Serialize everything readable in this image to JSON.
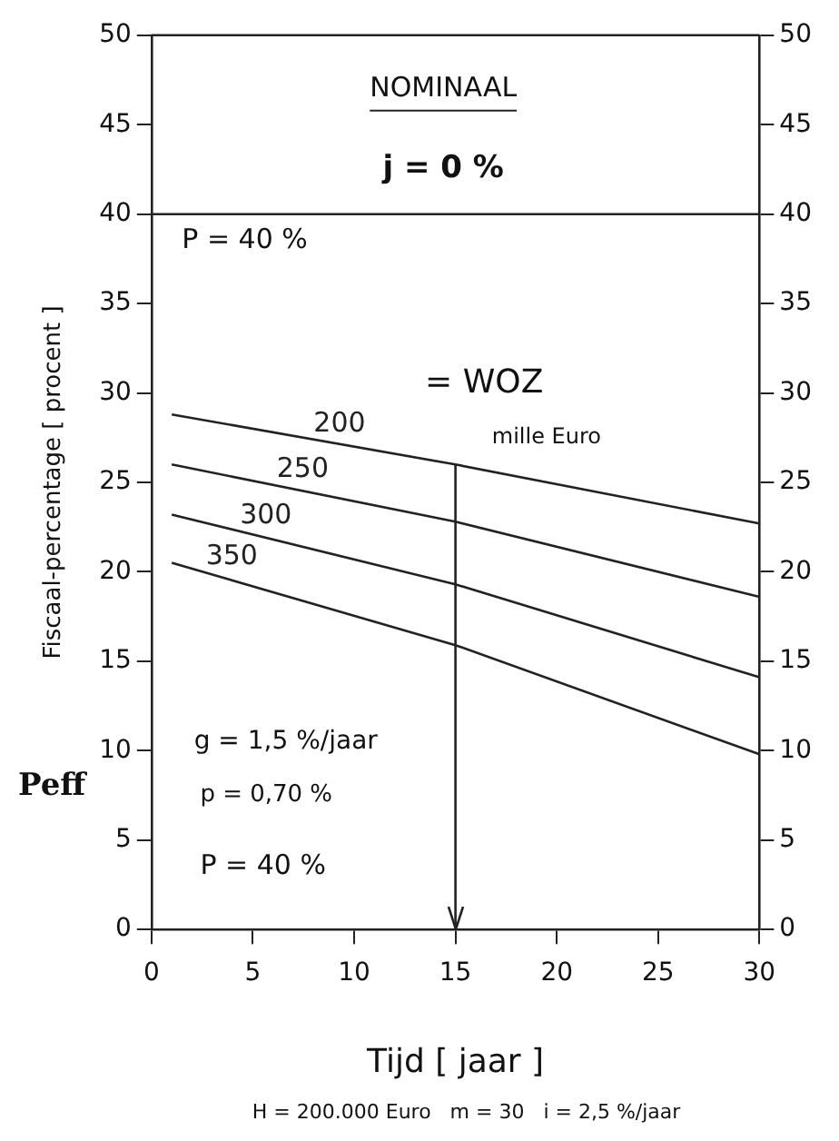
{
  "chart_data": {
    "type": "line",
    "xlabel": "Tijd [ jaar ]",
    "ylabel": "Fiscaal-percentage [ procent ]",
    "annotations": [
      "NOMINAAL",
      "j = 0 %",
      "P = 40 %",
      "= WOZ",
      "mille Euro",
      "g = 1,5 %/jaar",
      "p = 0,70 %",
      "P = 40 %",
      "Peff",
      "H = 200.000 Euro   m = 30   i = 2,5 %/jaar"
    ],
    "x": [
      1,
      15,
      30
    ],
    "series": [
      {
        "name": "200",
        "color": "#222222",
        "values": [
          28.8,
          26.0,
          22.7
        ]
      },
      {
        "name": "250",
        "color": "#222222",
        "values": [
          26.0,
          22.8,
          18.6
        ]
      },
      {
        "name": "300",
        "color": "#222222",
        "values": [
          23.2,
          19.3,
          14.1
        ]
      },
      {
        "name": "350",
        "color": "#222222",
        "values": [
          20.5,
          15.9,
          9.8
        ]
      }
    ],
    "xlim": [
      0,
      30
    ],
    "xticks": [
      0,
      5,
      10,
      15,
      20,
      25,
      30
    ],
    "ylim": [
      0,
      50
    ],
    "yticks": [
      0,
      5,
      10,
      15,
      20,
      25,
      30,
      35,
      40,
      45,
      50
    ],
    "y2lim": [
      0,
      50
    ],
    "y2ticks": [
      0,
      5,
      10,
      15,
      20,
      25,
      30,
      35,
      40,
      45,
      50
    ],
    "ref_lines": [
      {
        "axis": "y",
        "value": 40,
        "color": "#222222"
      },
      {
        "axis": "x",
        "value": 15,
        "color": "#222222"
      }
    ],
    "grid": false,
    "legend": false,
    "marker": "none",
    "line_style": "solid"
  }
}
